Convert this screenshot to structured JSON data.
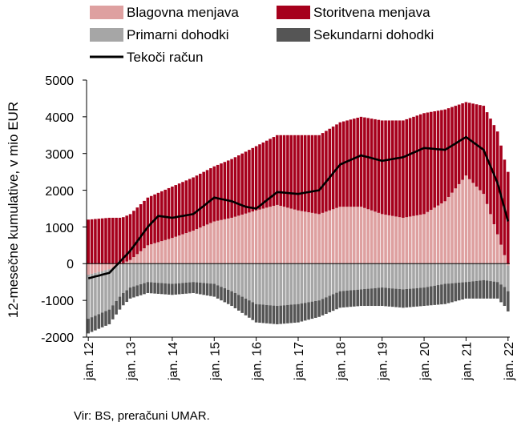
{
  "chart_data": {
    "type": "bar",
    "ylabel": "12-mesečne kumulative, v mio EUR",
    "ylim": [
      -2000,
      5000
    ],
    "yticks": [
      5000,
      4000,
      3000,
      2000,
      1000,
      0,
      -1000,
      -2000
    ],
    "x_tick_labels": [
      "jan. 12",
      "jan. 13",
      "jan. 14",
      "jan. 15",
      "jan. 16",
      "jan. 17",
      "jan. 18",
      "jan. 19",
      "jan. 20",
      "jan. 21",
      "jan. 22"
    ],
    "legend": [
      "Blagovna menjava",
      "Storitvena menjava",
      "Primarni dohodki",
      "Sekundarni dohodki",
      "Tekoči račun"
    ],
    "legend_position": "top",
    "source": "Vir: BS, preračuni UMAR.",
    "colors": {
      "Blagovna menjava": "#dea0a0",
      "Storitvena menjava": "#a6001c",
      "Primarni dohodki": "#a6a6a6",
      "Sekundarni dohodki": "#555555",
      "Tekoči račun": "#000000"
    },
    "series_anchors": {
      "Blagovna menjava": [
        {
          "x": "2012-01",
          "v": -300
        },
        {
          "x": "2012-07",
          "v": -150
        },
        {
          "x": "2013-01",
          "v": 100
        },
        {
          "x": "2013-06",
          "v": 500
        },
        {
          "x": "2014-01",
          "v": 700
        },
        {
          "x": "2014-07",
          "v": 900
        },
        {
          "x": "2015-01",
          "v": 1150
        },
        {
          "x": "2015-06",
          "v": 1250
        },
        {
          "x": "2016-01",
          "v": 1450
        },
        {
          "x": "2016-07",
          "v": 1600
        },
        {
          "x": "2017-01",
          "v": 1450
        },
        {
          "x": "2017-07",
          "v": 1350
        },
        {
          "x": "2018-01",
          "v": 1550
        },
        {
          "x": "2018-07",
          "v": 1550
        },
        {
          "x": "2019-01",
          "v": 1350
        },
        {
          "x": "2019-07",
          "v": 1250
        },
        {
          "x": "2020-01",
          "v": 1350
        },
        {
          "x": "2020-07",
          "v": 1700
        },
        {
          "x": "2021-01",
          "v": 2400
        },
        {
          "x": "2021-06",
          "v": 1900
        },
        {
          "x": "2021-10",
          "v": 800
        },
        {
          "x": "2022-01",
          "v": -50
        }
      ],
      "Storitvena menjava": [
        {
          "x": "2012-01",
          "v": 1200
        },
        {
          "x": "2012-07",
          "v": 1250
        },
        {
          "x": "2013-01",
          "v": 1250
        },
        {
          "x": "2013-06",
          "v": 1300
        },
        {
          "x": "2014-01",
          "v": 1400
        },
        {
          "x": "2014-07",
          "v": 1450
        },
        {
          "x": "2015-01",
          "v": 1500
        },
        {
          "x": "2015-06",
          "v": 1600
        },
        {
          "x": "2016-01",
          "v": 1750
        },
        {
          "x": "2016-07",
          "v": 1900
        },
        {
          "x": "2017-01",
          "v": 2050
        },
        {
          "x": "2017-07",
          "v": 2150
        },
        {
          "x": "2018-01",
          "v": 2300
        },
        {
          "x": "2018-07",
          "v": 2450
        },
        {
          "x": "2019-01",
          "v": 2550
        },
        {
          "x": "2019-07",
          "v": 2650
        },
        {
          "x": "2020-01",
          "v": 2750
        },
        {
          "x": "2020-07",
          "v": 2500
        },
        {
          "x": "2021-01",
          "v": 2000
        },
        {
          "x": "2021-06",
          "v": 2400
        },
        {
          "x": "2021-10",
          "v": 2800
        },
        {
          "x": "2022-01",
          "v": 2500
        }
      ],
      "Primarni dohodki": [
        {
          "x": "2012-01",
          "v": -1200
        },
        {
          "x": "2012-07",
          "v": -1100
        },
        {
          "x": "2013-01",
          "v": -650
        },
        {
          "x": "2013-06",
          "v": -500
        },
        {
          "x": "2014-01",
          "v": -550
        },
        {
          "x": "2014-07",
          "v": -500
        },
        {
          "x": "2015-01",
          "v": -550
        },
        {
          "x": "2015-06",
          "v": -750
        },
        {
          "x": "2016-01",
          "v": -1100
        },
        {
          "x": "2016-07",
          "v": -1150
        },
        {
          "x": "2017-01",
          "v": -1100
        },
        {
          "x": "2017-07",
          "v": -1000
        },
        {
          "x": "2018-01",
          "v": -750
        },
        {
          "x": "2018-07",
          "v": -700
        },
        {
          "x": "2019-01",
          "v": -650
        },
        {
          "x": "2019-07",
          "v": -700
        },
        {
          "x": "2020-01",
          "v": -650
        },
        {
          "x": "2020-07",
          "v": -550
        },
        {
          "x": "2021-01",
          "v": -500
        },
        {
          "x": "2021-06",
          "v": -450
        },
        {
          "x": "2021-10",
          "v": -500
        },
        {
          "x": "2022-01",
          "v": -700
        }
      ],
      "Sekundarni dohodki": [
        {
          "x": "2012-01",
          "v": -400
        },
        {
          "x": "2012-07",
          "v": -400
        },
        {
          "x": "2013-01",
          "v": -300
        },
        {
          "x": "2013-06",
          "v": -300
        },
        {
          "x": "2014-01",
          "v": -300
        },
        {
          "x": "2014-07",
          "v": -300
        },
        {
          "x": "2015-01",
          "v": -350
        },
        {
          "x": "2015-06",
          "v": -400
        },
        {
          "x": "2016-01",
          "v": -500
        },
        {
          "x": "2016-07",
          "v": -500
        },
        {
          "x": "2017-01",
          "v": -500
        },
        {
          "x": "2017-07",
          "v": -450
        },
        {
          "x": "2018-01",
          "v": -450
        },
        {
          "x": "2018-07",
          "v": -450
        },
        {
          "x": "2019-01",
          "v": -500
        },
        {
          "x": "2019-07",
          "v": -500
        },
        {
          "x": "2020-01",
          "v": -500
        },
        {
          "x": "2020-07",
          "v": -550
        },
        {
          "x": "2021-01",
          "v": -450
        },
        {
          "x": "2021-06",
          "v": -500
        },
        {
          "x": "2021-10",
          "v": -450
        },
        {
          "x": "2022-01",
          "v": -550
        }
      ],
      "Tekoči račun": [
        {
          "x": "2012-01",
          "v": -400
        },
        {
          "x": "2012-07",
          "v": -250
        },
        {
          "x": "2013-01",
          "v": 350
        },
        {
          "x": "2013-06",
          "v": 1000
        },
        {
          "x": "2013-09",
          "v": 1300
        },
        {
          "x": "2014-01",
          "v": 1250
        },
        {
          "x": "2014-07",
          "v": 1350
        },
        {
          "x": "2015-01",
          "v": 1800
        },
        {
          "x": "2015-06",
          "v": 1700
        },
        {
          "x": "2015-10",
          "v": 1550
        },
        {
          "x": "2016-01",
          "v": 1500
        },
        {
          "x": "2016-07",
          "v": 1950
        },
        {
          "x": "2017-01",
          "v": 1900
        },
        {
          "x": "2017-07",
          "v": 2000
        },
        {
          "x": "2018-01",
          "v": 2700
        },
        {
          "x": "2018-07",
          "v": 2950
        },
        {
          "x": "2019-01",
          "v": 2800
        },
        {
          "x": "2019-07",
          "v": 2900
        },
        {
          "x": "2020-01",
          "v": 3150
        },
        {
          "x": "2020-07",
          "v": 3100
        },
        {
          "x": "2021-01",
          "v": 3450
        },
        {
          "x": "2021-06",
          "v": 3100
        },
        {
          "x": "2021-10",
          "v": 2200
        },
        {
          "x": "2022-01",
          "v": 1150
        }
      ]
    }
  }
}
